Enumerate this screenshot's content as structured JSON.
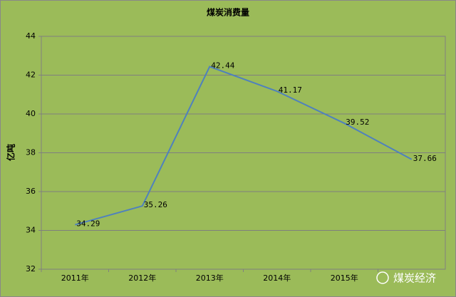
{
  "chart_data": {
    "type": "line",
    "title": "煤炭消费量",
    "y_label": "亿吨",
    "categories": [
      "2011年",
      "2012年",
      "2013年",
      "2014年",
      "2015年",
      null
    ],
    "series": [
      {
        "name": "煤炭消费量",
        "color": "#4f81bd",
        "values": [
          34.29,
          35.26,
          42.44,
          41.17,
          39.52,
          37.66
        ]
      }
    ],
    "ylim": [
      32,
      44
    ],
    "yticks": [
      32,
      34,
      36,
      38,
      40,
      42,
      44
    ],
    "grid": true,
    "watermark": "煤炭经济"
  }
}
